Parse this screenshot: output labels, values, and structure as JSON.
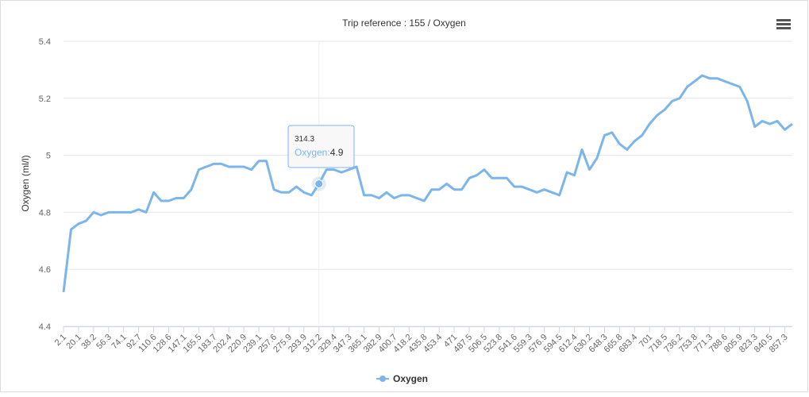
{
  "chart_data": {
    "type": "line",
    "title": "Trip reference : 155 / Oxygen",
    "y_label": "Oxygen (ml/l)",
    "categories": [
      "2.1",
      null,
      "20.1",
      null,
      "38.2",
      null,
      "56.3",
      null,
      "74.1",
      null,
      "92.7",
      null,
      "110.6",
      null,
      "128.6",
      null,
      "147.1",
      null,
      "165.5",
      null,
      "183.7",
      null,
      "202.4",
      null,
      "220.9",
      null,
      "239.1",
      null,
      "257.6",
      null,
      "275.9",
      null,
      "293.9",
      null,
      "312.2",
      null,
      "329.4",
      null,
      "347.3",
      null,
      "365.1",
      null,
      "382.9",
      null,
      "400.7",
      null,
      "418.2",
      null,
      "435.8",
      null,
      "453.4",
      null,
      "471",
      null,
      "487.5",
      null,
      "506.5",
      null,
      "523.8",
      null,
      "541.6",
      null,
      "559.3",
      null,
      "576.9",
      null,
      "594.5",
      null,
      "612.4",
      null,
      "630.2",
      null,
      "648.3",
      null,
      "665.8",
      null,
      "683.4",
      null,
      "701",
      null,
      "718.5",
      null,
      "736.2",
      null,
      "753.8",
      null,
      "771.3",
      null,
      "788.6",
      null,
      "805.9",
      null,
      "823.3",
      null,
      "840.5",
      null,
      "857.3",
      null
    ],
    "series": [
      {
        "name": "Oxygen",
        "color": "#7cb5ec",
        "values": [
          4.52,
          4.74,
          4.76,
          4.77,
          4.8,
          4.79,
          4.8,
          4.8,
          4.8,
          4.8,
          4.81,
          4.8,
          4.87,
          4.84,
          4.84,
          4.85,
          4.85,
          4.88,
          4.95,
          4.96,
          4.97,
          4.97,
          4.96,
          4.96,
          4.96,
          4.95,
          4.98,
          4.98,
          4.88,
          4.87,
          4.87,
          4.89,
          4.87,
          4.86,
          4.9,
          4.95,
          4.95,
          4.94,
          4.95,
          4.96,
          4.86,
          4.86,
          4.85,
          4.87,
          4.85,
          4.86,
          4.86,
          4.85,
          4.84,
          4.88,
          4.88,
          4.9,
          4.88,
          4.88,
          4.92,
          4.93,
          4.95,
          4.92,
          4.92,
          4.92,
          4.89,
          4.89,
          4.88,
          4.87,
          4.88,
          4.87,
          4.86,
          4.94,
          4.93,
          5.02,
          4.95,
          4.99,
          5.07,
          5.08,
          5.04,
          5.02,
          5.05,
          5.07,
          5.11,
          5.14,
          5.16,
          5.19,
          5.2,
          5.24,
          5.26,
          5.28,
          5.27,
          5.27,
          5.26,
          5.25,
          5.24,
          5.19,
          5.1,
          5.12,
          5.11,
          5.12,
          5.09,
          5.11
        ]
      }
    ],
    "ylim": [
      4.4,
      5.4
    ],
    "yticks": [
      4.4,
      4.6,
      4.8,
      5,
      5.2,
      5.4
    ],
    "grid": true,
    "tooltip": {
      "x": "314.3",
      "series": "Oxygen",
      "value": 4.9
    }
  }
}
